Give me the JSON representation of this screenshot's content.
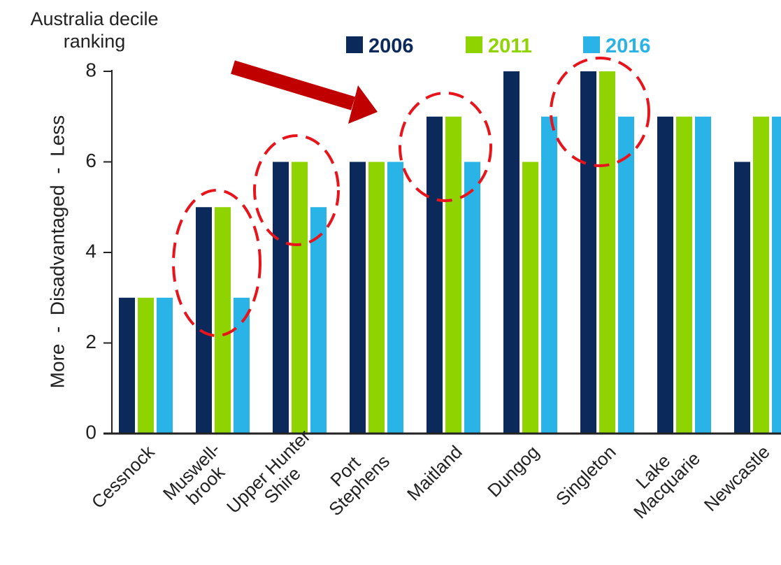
{
  "chart_data": {
    "type": "bar",
    "y_axis_title": "Australia decile\nranking",
    "y_axis_label": "More  -  Disadvantaged  -  Less",
    "categories": [
      "Cessnock",
      "Muswell-\nbrook",
      "Upper Hunter\nShire",
      "Port\nStephens",
      "Maitland",
      "Dungog",
      "Singleton",
      "Lake\nMacquarie",
      "Newcastle"
    ],
    "series": [
      {
        "name": "2006",
        "color": "#0b2a5b",
        "values": [
          3,
          5,
          6,
          6,
          7,
          8,
          8,
          7,
          6
        ]
      },
      {
        "name": "2011",
        "color": "#8fd400",
        "values": [
          3,
          5,
          6,
          6,
          7,
          6,
          8,
          7,
          7
        ]
      },
      {
        "name": "2016",
        "color": "#29b3e6",
        "values": [
          3,
          3,
          5,
          6,
          6,
          7,
          7,
          7,
          7
        ]
      }
    ],
    "ylim": [
      0,
      8
    ],
    "yticks": [
      0,
      2,
      4,
      6,
      8
    ],
    "grid": false,
    "legend": "top"
  }
}
